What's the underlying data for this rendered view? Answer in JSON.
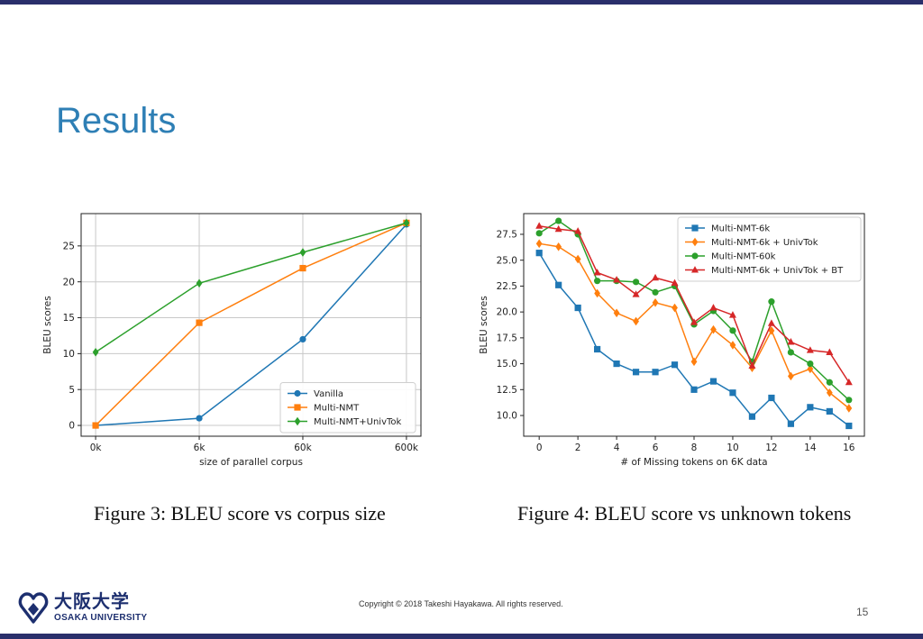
{
  "slide": {
    "title": "Results",
    "copyright": "Copyright © 2018 Takeshi Hayakawa. All rights reserved.",
    "page_number": "15",
    "logo": {
      "kanji": "大阪大学",
      "english": "OSAKA UNIVERSITY",
      "color": "#1d2f6f"
    },
    "accent_bar_color": "#2a2f6b"
  },
  "figures": {
    "fig3_caption": "Figure 3:  BLEU score vs corpus size",
    "fig4_caption": "Figure 4:  BLEU score vs unknown tokens"
  },
  "chart_data": [
    {
      "type": "line",
      "xlabel": "size of parallel corpus",
      "ylabel": "BLEU scores",
      "x_tick_labels": [
        "0k",
        "6k",
        "60k",
        "600k"
      ],
      "yticks": [
        0,
        5,
        10,
        15,
        20,
        25
      ],
      "ylim": [
        -1.5,
        29.5
      ],
      "grid": true,
      "legend_position": "lower-right",
      "series": [
        {
          "name": "Vanilla",
          "color": "#1f77b4",
          "marker": "circle",
          "values": [
            0,
            1,
            12,
            28
          ]
        },
        {
          "name": "Multi-NMT",
          "color": "#ff7f0e",
          "marker": "square",
          "values": [
            0,
            14.3,
            21.9,
            28.2
          ]
        },
        {
          "name": "Multi-NMT+UnivTok",
          "color": "#2ca02c",
          "marker": "diamond",
          "values": [
            10.2,
            19.8,
            24.1,
            28.2
          ]
        }
      ]
    },
    {
      "type": "line",
      "xlabel": "# of Missing tokens on 6K data",
      "ylabel": "BLEU scores",
      "x": [
        0,
        1,
        2,
        3,
        4,
        5,
        6,
        7,
        8,
        9,
        10,
        11,
        12,
        13,
        14,
        15,
        16
      ],
      "xticks": [
        0,
        2,
        4,
        6,
        8,
        10,
        12,
        14,
        16
      ],
      "yticks": [
        10.0,
        12.5,
        15.0,
        17.5,
        20.0,
        22.5,
        25.0,
        27.5
      ],
      "ylim": [
        8.0,
        29.5
      ],
      "xlim": [
        -0.8,
        16.8
      ],
      "grid": false,
      "legend_position": "top-right",
      "series": [
        {
          "name": "Multi-NMT-6k",
          "color": "#1f77b4",
          "marker": "square",
          "values": [
            25.7,
            22.6,
            20.4,
            16.4,
            15.0,
            14.2,
            14.2,
            14.9,
            12.5,
            13.3,
            12.2,
            9.9,
            11.7,
            9.2,
            10.8,
            10.4,
            9.0
          ]
        },
        {
          "name": "Multi-NMT-6k + UnivTok",
          "color": "#ff7f0e",
          "marker": "diamond",
          "values": [
            26.6,
            26.3,
            25.1,
            21.8,
            19.9,
            19.1,
            20.9,
            20.4,
            15.2,
            18.3,
            16.8,
            14.6,
            18.2,
            13.8,
            14.5,
            12.2,
            10.7
          ]
        },
        {
          "name": "Multi-NMT-60k",
          "color": "#2ca02c",
          "marker": "circle",
          "values": [
            27.6,
            28.8,
            27.5,
            23.0,
            23.0,
            22.9,
            21.9,
            22.5,
            18.8,
            20.1,
            18.2,
            15.2,
            21.0,
            16.1,
            15.0,
            13.2,
            11.5
          ]
        },
        {
          "name": "Multi-NMT-6k + UnivTok + BT",
          "color": "#d62728",
          "marker": "triangle",
          "values": [
            28.3,
            28.0,
            27.8,
            23.8,
            23.1,
            21.7,
            23.3,
            22.8,
            19.0,
            20.4,
            19.7,
            14.8,
            18.9,
            17.1,
            16.3,
            16.1,
            13.2
          ]
        }
      ]
    }
  ]
}
